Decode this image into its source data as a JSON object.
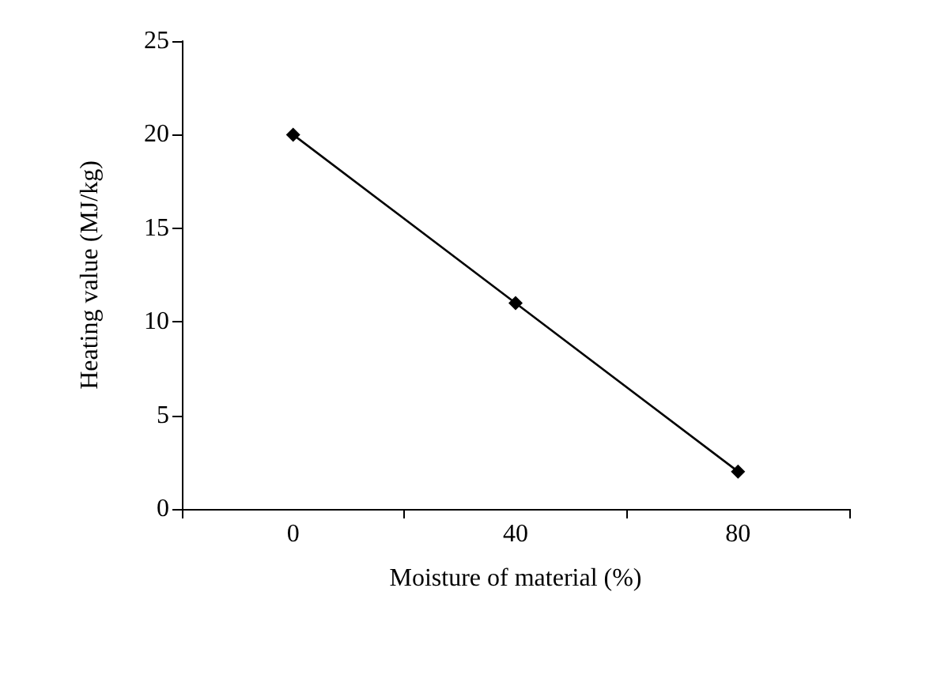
{
  "chart_data": {
    "type": "line",
    "xlabel": "Moisture of material (%)",
    "ylabel": "Heating value (MJ/kg)",
    "categories": [
      "0",
      "40",
      "80"
    ],
    "series": [
      {
        "color": "#000000",
        "values": [
          20,
          11,
          2
        ]
      }
    ],
    "ylim": [
      0,
      25
    ],
    "yticks": [
      0,
      5,
      10,
      15,
      20,
      25
    ],
    "grid": false,
    "marker": "diamond",
    "line_style": "solid"
  }
}
